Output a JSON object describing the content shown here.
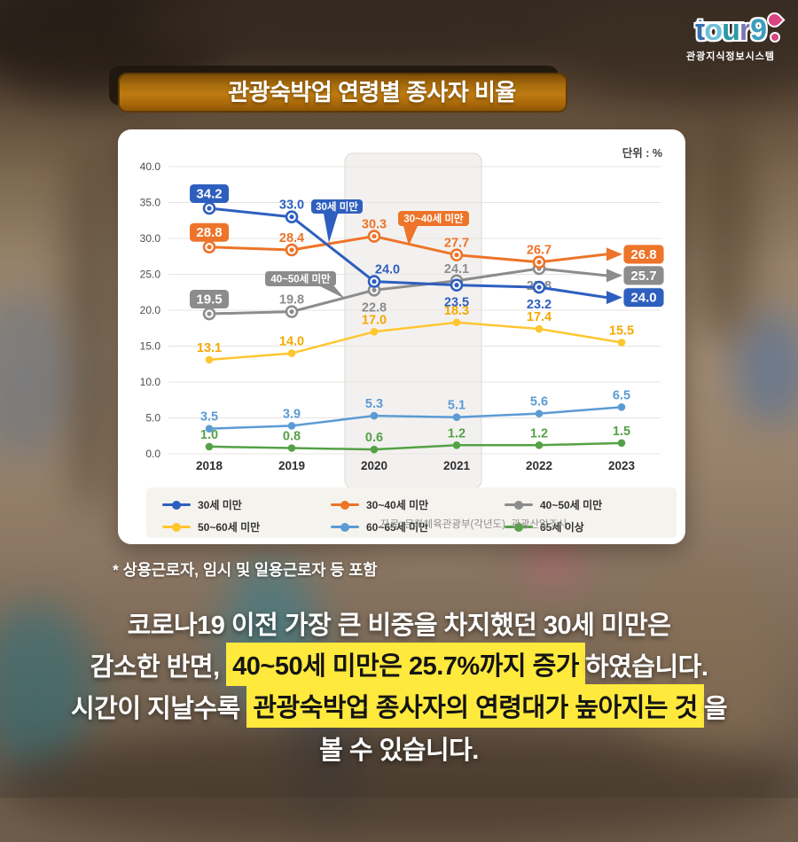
{
  "logo": {
    "word": "tour9",
    "subtitle": "관광지식정보시스템"
  },
  "header": {
    "title": "관광숙박업 연령별 종사자 비율"
  },
  "chart_data": {
    "type": "line",
    "unit_label": "단위 : %",
    "x": [
      2018,
      2019,
      2020,
      2021,
      2022,
      2023
    ],
    "ylim": [
      0,
      40
    ],
    "ytick_step": 5,
    "grid": true,
    "legend_position": "bottom",
    "highlight_band_x": [
      2020,
      2021
    ],
    "series": [
      {
        "name": "30세 미만",
        "color": "#2e5fbf",
        "values": [
          34.2,
          33.0,
          24.0,
          23.5,
          23.2,
          24.0
        ]
      },
      {
        "name": "30~40세 미만",
        "color": "#ed7429",
        "values": [
          28.8,
          28.4,
          30.3,
          27.7,
          26.7,
          26.8
        ]
      },
      {
        "name": "40~50세 미만",
        "color": "#8c8c8c",
        "values": [
          19.5,
          19.8,
          22.8,
          24.1,
          25.8,
          25.7
        ]
      },
      {
        "name": "50~60세 미만",
        "color": "#fec62f",
        "label_color": "#f5a800",
        "values": [
          13.1,
          14.0,
          17.0,
          18.3,
          17.4,
          15.5
        ]
      },
      {
        "name": "60~65세 미만",
        "color": "#5b9bd5",
        "values": [
          3.5,
          3.9,
          5.3,
          5.1,
          5.6,
          6.5
        ]
      },
      {
        "name": "65세 이상",
        "color": "#55a146",
        "values": [
          1.0,
          0.8,
          0.6,
          1.2,
          1.2,
          1.5
        ]
      }
    ],
    "source": "자료: 문화체육관광부(각년도). 관광산업조사."
  },
  "note": {
    "text": "* 상용근로자, 임시 및 일용근로자 등 포함"
  },
  "caption": {
    "lines": [
      [
        {
          "t": "코로나19 이전 가장 큰 비중을 차지했던 30세 미만은",
          "hl": false
        }
      ],
      [
        {
          "t": "감소한 반면, ",
          "hl": false
        },
        {
          "t": "40~50세 미만은 25.7%까지 증가",
          "hl": true
        },
        {
          "t": "하였습니다.",
          "hl": false
        }
      ],
      [
        {
          "t": "시간이 지날수록 ",
          "hl": false
        },
        {
          "t": "관광숙박업 종사자의 연령대가 높아지는 것",
          "hl": true
        },
        {
          "t": "을",
          "hl": false
        }
      ],
      [
        {
          "t": "볼 수 있습니다.",
          "hl": false
        }
      ]
    ]
  },
  "colors": {
    "highlight": "#ffe93d",
    "banner_orange": "#b4700c",
    "pin_pink": "#d8457f"
  }
}
